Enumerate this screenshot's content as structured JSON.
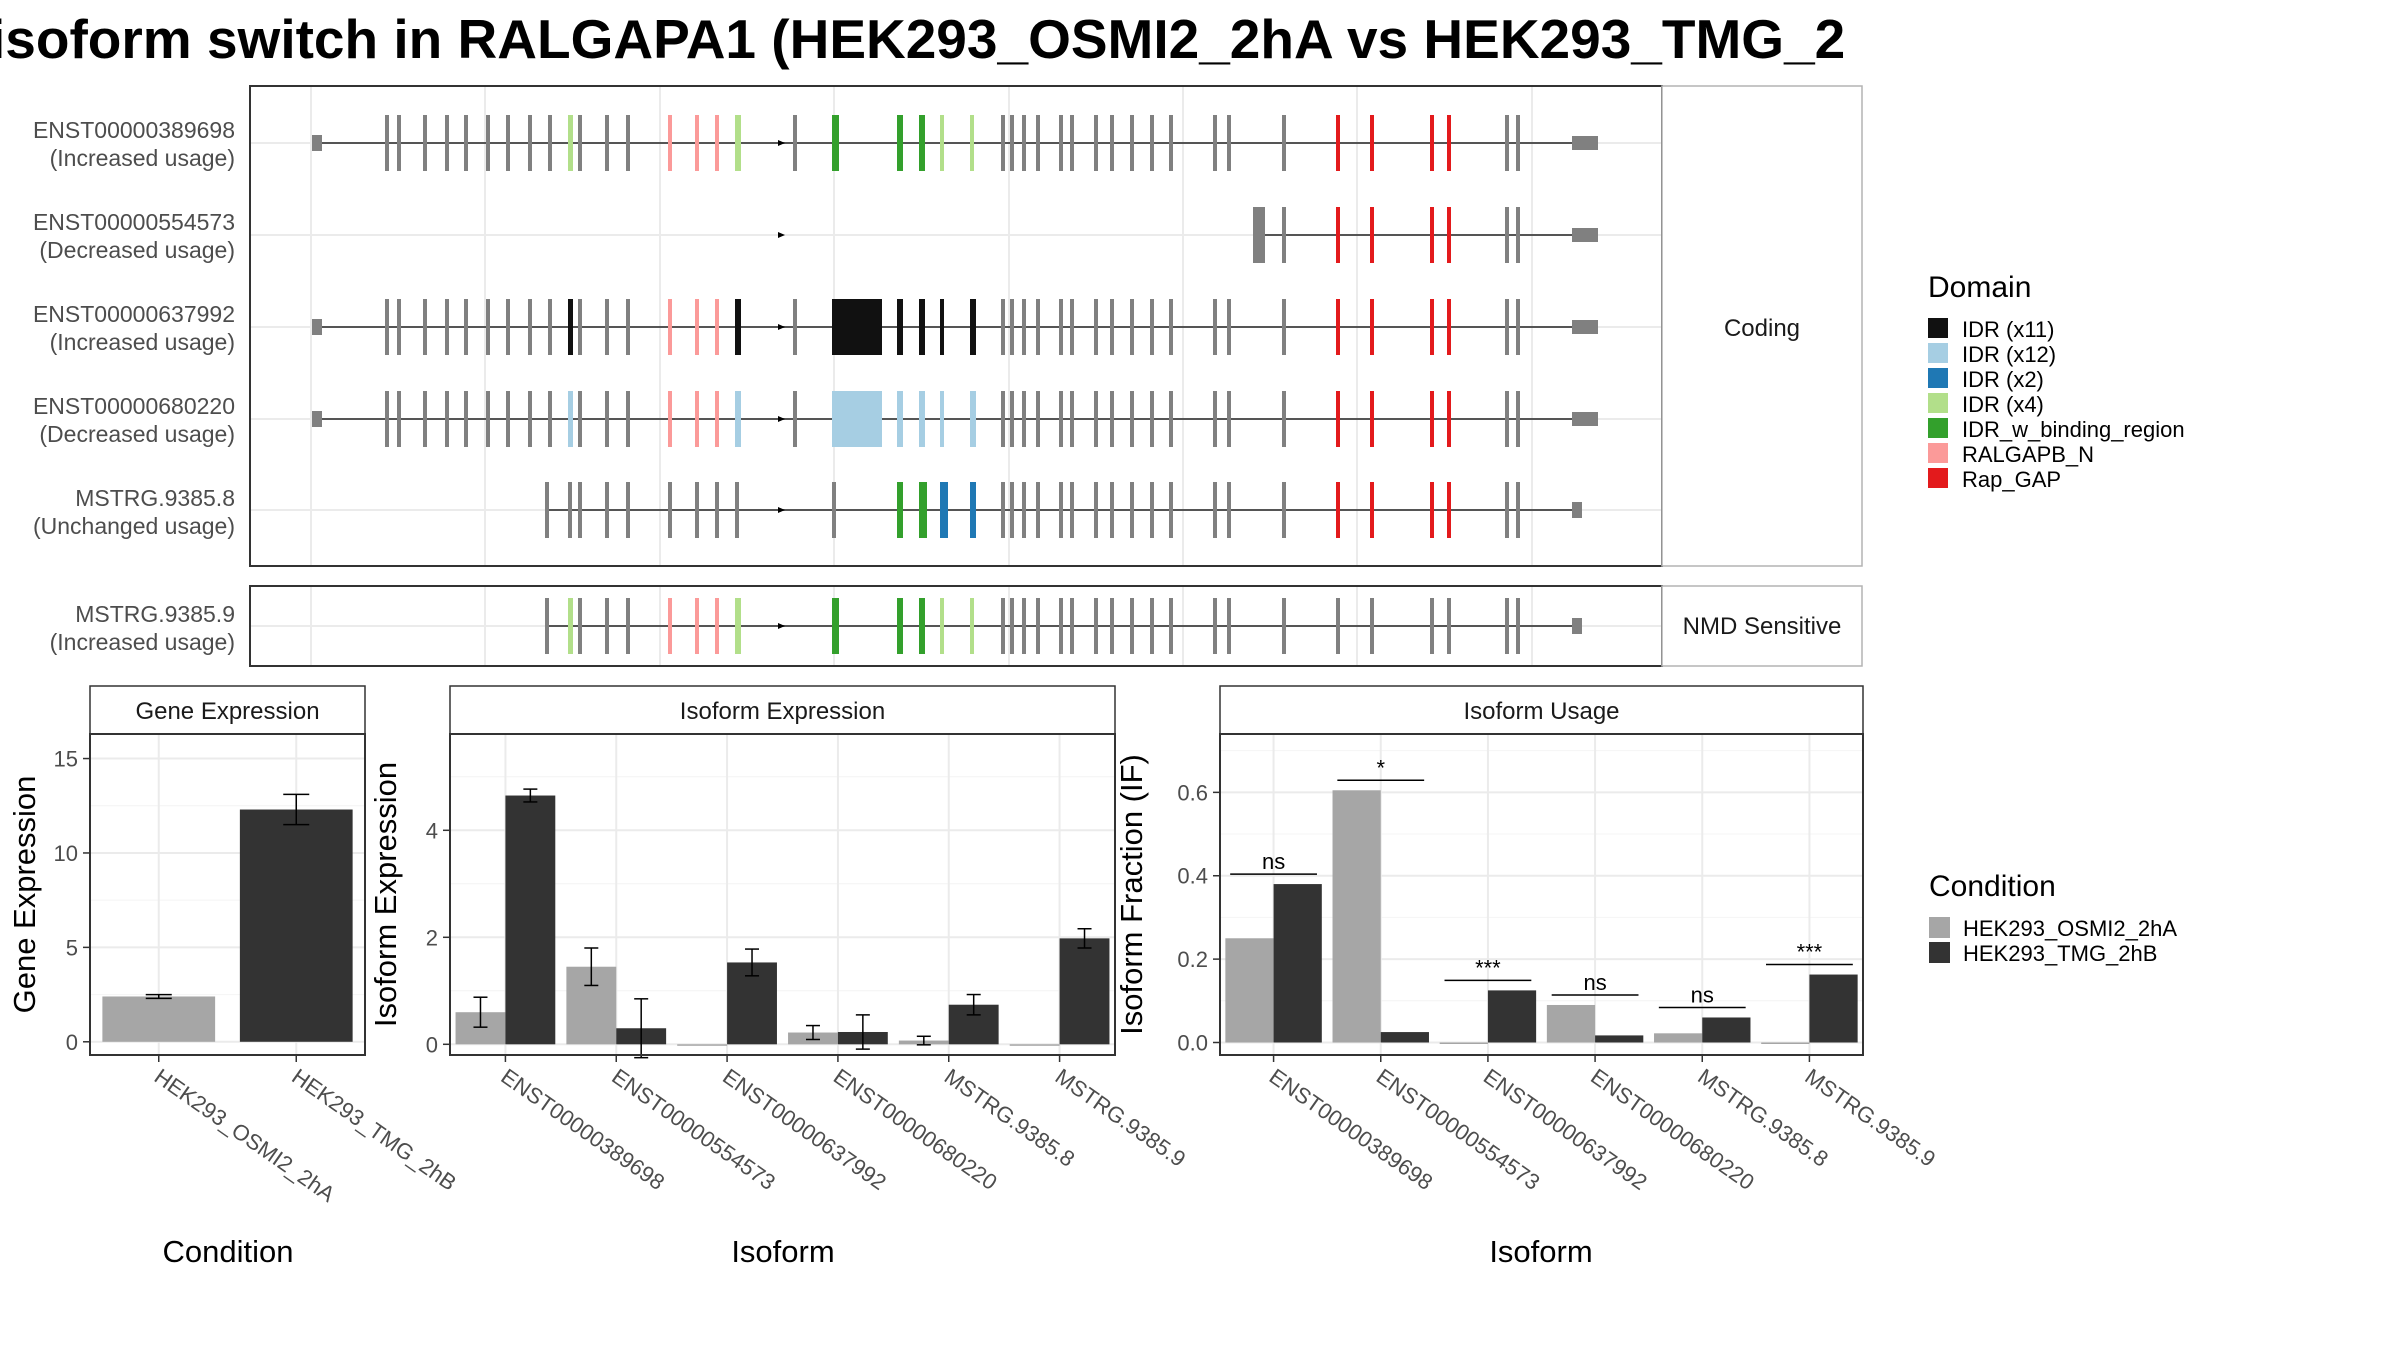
{
  "title": "isoform switch in RALGAPA1 (HEK293_OSMI2_2hA vs HEK293_TMG_2",
  "structure": {
    "transcripts": [
      {
        "id": "ENST00000389698",
        "usage": "(Increased usage)",
        "group": "Coding"
      },
      {
        "id": "ENST00000554573",
        "usage": "(Decreased usage)",
        "group": "Coding"
      },
      {
        "id": "ENST00000637992",
        "usage": "(Increased usage)",
        "group": "Coding"
      },
      {
        "id": "ENST00000680220",
        "usage": "(Decreased usage)",
        "group": "Coding"
      },
      {
        "id": "MSTRG.9385.8",
        "usage": "(Unchanged usage)",
        "group": "Coding"
      },
      {
        "id": "MSTRG.9385.9",
        "usage": "(Increased usage)",
        "group": "NMD Sensitive"
      }
    ],
    "group_labels": [
      "Coding",
      "NMD Sensitive"
    ]
  },
  "domain_legend": {
    "title": "Domain",
    "items": [
      {
        "label": "IDR (x11)",
        "color": "#111111"
      },
      {
        "label": "IDR (x12)",
        "color": "#a6cee3"
      },
      {
        "label": "IDR (x2)",
        "color": "#1f78b4"
      },
      {
        "label": "IDR (x4)",
        "color": "#b2df8a"
      },
      {
        "label": "IDR_w_binding_region",
        "color": "#33a02c"
      },
      {
        "label": "RALGAPB_N",
        "color": "#fb9a99"
      },
      {
        "label": "Rap_GAP",
        "color": "#e31a1c"
      }
    ]
  },
  "condition_legend": {
    "title": "Condition",
    "items": [
      {
        "label": "HEK293_OSMI2_2hA",
        "color": "#a6a6a6"
      },
      {
        "label": "HEK293_TMG_2hB",
        "color": "#333333"
      }
    ]
  },
  "chart_data": [
    {
      "type": "bar",
      "title": "Gene Expression",
      "xlabel": "Condition",
      "ylabel": "Gene Expression",
      "categories": [
        "HEK293_OSMI2_2hA",
        "HEK293_TMG_2hB"
      ],
      "values": [
        2.4,
        12.3
      ],
      "errors": [
        0.1,
        0.8
      ],
      "colors": [
        "#a6a6a6",
        "#333333"
      ],
      "ylim": [
        -0.7,
        16.3
      ],
      "yticks": [
        0,
        5,
        10,
        15
      ]
    },
    {
      "type": "bar",
      "title": "Isoform Expression",
      "xlabel": "Isoform",
      "ylabel": "Isoform Expression",
      "categories": [
        "ENST00000389698",
        "ENST00000554573",
        "ENST00000637992",
        "ENST00000680220",
        "MSTRG.9385.8",
        "MSTRG.9385.9"
      ],
      "series": [
        {
          "name": "HEK293_OSMI2_2hA",
          "values": [
            0.6,
            1.45,
            0.0,
            0.22,
            0.07,
            0.0
          ],
          "errors": [
            0.28,
            0.35,
            0.0,
            0.13,
            0.08,
            0.0
          ]
        },
        {
          "name": "HEK293_TMG_2hB",
          "values": [
            4.65,
            0.3,
            1.53,
            0.23,
            0.74,
            1.98
          ],
          "errors": [
            0.12,
            0.55,
            0.25,
            0.32,
            0.19,
            0.18
          ]
        }
      ],
      "ylim": [
        -0.2,
        5.8
      ],
      "yticks": [
        0,
        2,
        4
      ]
    },
    {
      "type": "bar",
      "title": "Isoform Usage",
      "xlabel": "Isoform",
      "ylabel": "Isoform Fraction (IF)",
      "categories": [
        "ENST00000389698",
        "ENST00000554573",
        "ENST00000637992",
        "ENST00000680220",
        "MSTRG.9385.8",
        "MSTRG.9385.9"
      ],
      "series": [
        {
          "name": "HEK293_OSMI2_2hA",
          "values": [
            0.25,
            0.605,
            0.0,
            0.09,
            0.022,
            0.0
          ]
        },
        {
          "name": "HEK293_TMG_2hB",
          "values": [
            0.38,
            0.025,
            0.125,
            0.017,
            0.06,
            0.163
          ]
        }
      ],
      "significance": [
        "ns",
        "*",
        "***",
        "ns",
        "ns",
        "***"
      ],
      "ylim": [
        -0.03,
        0.74
      ],
      "yticks": [
        0.0,
        0.2,
        0.4,
        0.6
      ]
    }
  ]
}
